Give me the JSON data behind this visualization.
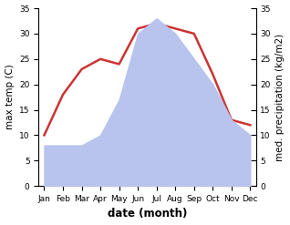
{
  "months": [
    "Jan",
    "Feb",
    "Mar",
    "Apr",
    "May",
    "Jun",
    "Jul",
    "Aug",
    "Sep",
    "Oct",
    "Nov",
    "Dec"
  ],
  "temperature": [
    10,
    18,
    23,
    25,
    24,
    31,
    32,
    31,
    30,
    22,
    13,
    12
  ],
  "precipitation": [
    8,
    8,
    8,
    10,
    17,
    30,
    33,
    30,
    25,
    20,
    13,
    10
  ],
  "temp_color": "#cc3333",
  "precip_color": "#b8c4ee",
  "ylim_left": [
    0,
    35
  ],
  "ylim_right": [
    0,
    35
  ],
  "ylabel_left": "max temp (C)",
  "ylabel_right": "med. precipitation (kg/m2)",
  "xlabel": "date (month)",
  "bg_color": "#ffffff",
  "plot_bg_color": "#ffffff",
  "tick_fontsize": 6.5,
  "label_fontsize": 7.5,
  "xlabel_fontsize": 8.5,
  "line_width": 1.8
}
